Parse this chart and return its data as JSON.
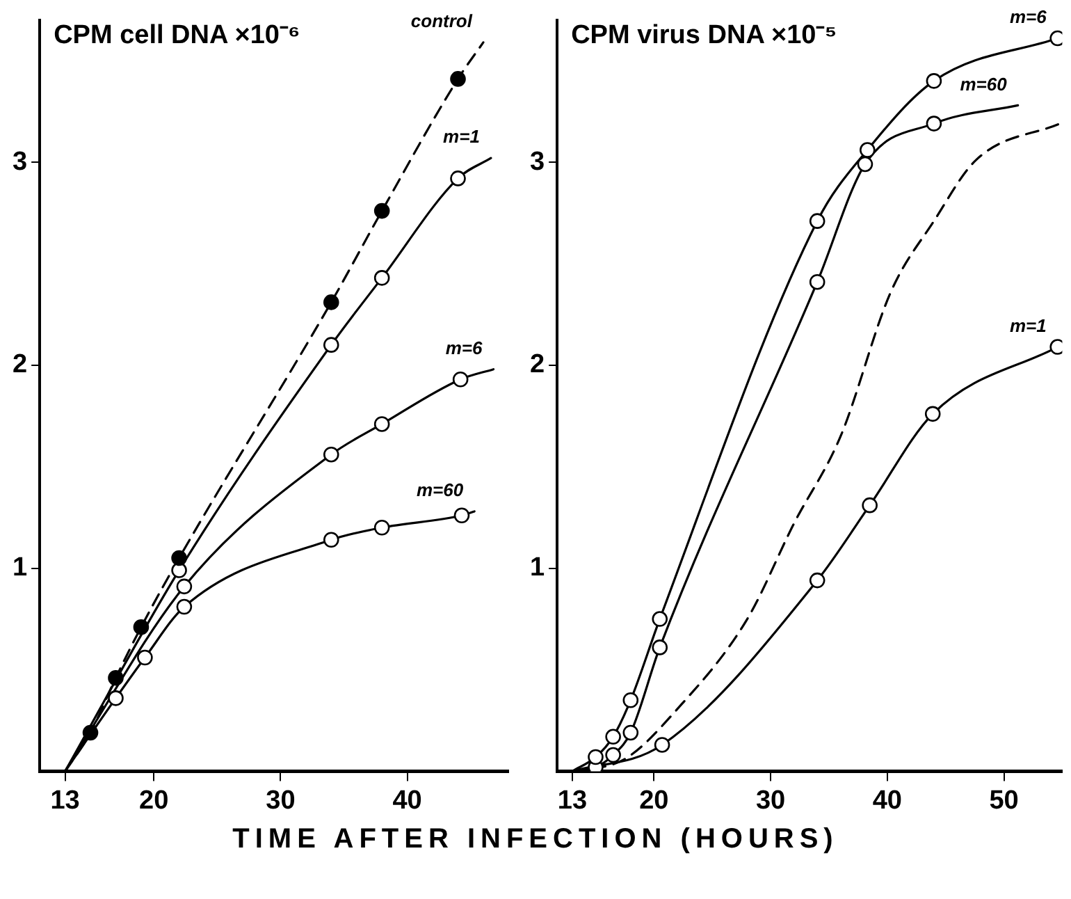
{
  "chart_data": [
    {
      "type": "line",
      "ylabel": "CPM cell DNA ×10⁻⁶",
      "xlabel": "TIME AFTER INFECTION (HOURS)",
      "xlim": [
        11,
        48
      ],
      "xticks": [
        13,
        20,
        30,
        40
      ],
      "ylim": [
        0,
        3.7
      ],
      "yticks": [
        1,
        2,
        3
      ],
      "legend": false,
      "series": [
        {
          "type": "line",
          "name": "control",
          "color": "#000000",
          "marker": "none",
          "line_style": "dashed",
          "x": [
            13,
            15,
            17,
            19,
            22,
            34,
            38,
            44,
            46
          ],
          "values": [
            0,
            0.19,
            0.46,
            0.71,
            1.05,
            2.31,
            2.76,
            3.41,
            3.59
          ]
        },
        {
          "type": "scatter",
          "color": "#000000",
          "marker": "circle",
          "x": [
            15,
            17,
            19,
            22,
            34,
            38,
            44
          ],
          "values": [
            0.19,
            0.46,
            0.71,
            1.05,
            2.31,
            2.76,
            3.41
          ]
        },
        {
          "type": "line",
          "name": "m=1",
          "color": "#000000",
          "marker": "none",
          "line_style": "solid",
          "x": [
            13,
            22,
            34,
            38,
            44,
            46.6
          ],
          "values": [
            0,
            0.99,
            2.1,
            2.43,
            2.92,
            3.02
          ]
        },
        {
          "type": "scatter",
          "color": "#ffffff",
          "marker": "circle",
          "x": [
            22,
            34,
            38,
            44
          ],
          "values": [
            0.99,
            2.1,
            2.43,
            2.92
          ]
        },
        {
          "type": "line",
          "name": "m=6",
          "color": "#000000",
          "marker": "none",
          "line_style": "solid",
          "x": [
            13,
            22.4,
            34,
            38,
            44.2,
            46.8
          ],
          "values": [
            0,
            0.91,
            1.56,
            1.71,
            1.93,
            1.98
          ]
        },
        {
          "type": "scatter",
          "color": "#ffffff",
          "marker": "circle",
          "x": [
            22.4,
            34,
            38,
            44.2
          ],
          "values": [
            0.91,
            1.56,
            1.71,
            1.93
          ]
        },
        {
          "type": "line",
          "name": "m=60",
          "color": "#000000",
          "marker": "none",
          "line_style": "solid",
          "x": [
            13,
            17,
            19.3,
            22.4,
            34,
            38,
            44.3,
            45.3
          ],
          "values": [
            0,
            0.36,
            0.56,
            0.81,
            1.14,
            1.2,
            1.26,
            1.28
          ]
        },
        {
          "type": "scatter",
          "color": "#ffffff",
          "marker": "circle",
          "x": [
            17,
            19.3,
            22.4,
            34,
            38,
            44.3
          ],
          "values": [
            0.36,
            0.56,
            0.81,
            1.14,
            1.2,
            1.26
          ]
        }
      ]
    },
    {
      "type": "line",
      "ylabel": "CPM virus DNA ×10⁻⁵",
      "xlim": [
        11.7,
        55
      ],
      "xticks": [
        13,
        20,
        30,
        40,
        50
      ],
      "ylim": [
        0,
        3.7
      ],
      "yticks": [
        1,
        2,
        3
      ],
      "legend": false,
      "series": [
        {
          "type": "line",
          "color": "#000000",
          "marker": "none",
          "line_style": "dashed",
          "x": [
            13,
            17.5,
            21.9,
            28,
            32,
            36,
            40.3,
            44,
            47.6,
            54.8
          ],
          "values": [
            0,
            0.06,
            0.3,
            0.75,
            1.22,
            1.65,
            2.36,
            2.71,
            3.01,
            3.19
          ]
        },
        {
          "type": "line",
          "name": "m=6",
          "color": "#000000",
          "marker": "none",
          "line_style": "solid",
          "x": [
            13,
            15,
            16.5,
            18,
            20.5,
            34,
            38.3,
            44,
            54.6
          ],
          "values": [
            0,
            0.07,
            0.17,
            0.35,
            0.75,
            2.71,
            3.06,
            3.4,
            3.61
          ]
        },
        {
          "type": "scatter",
          "color": "#ffffff",
          "marker": "circle",
          "x": [
            15,
            16.5,
            18,
            20.5,
            34,
            38.3,
            44,
            54.6
          ],
          "values": [
            0.07,
            0.17,
            0.35,
            0.75,
            2.71,
            3.06,
            3.4,
            3.61
          ]
        },
        {
          "type": "line",
          "name": "m=60",
          "color": "#000000",
          "marker": "none",
          "line_style": "solid",
          "x": [
            13,
            15,
            16.5,
            18,
            20.5,
            34,
            38.1,
            44,
            51.2
          ],
          "values": [
            0,
            0.02,
            0.08,
            0.19,
            0.61,
            2.41,
            2.99,
            3.19,
            3.28
          ]
        },
        {
          "type": "scatter",
          "color": "#ffffff",
          "marker": "circle",
          "x": [
            15,
            16.5,
            18,
            20.5,
            34,
            38.1,
            44
          ],
          "values": [
            0.02,
            0.08,
            0.19,
            0.61,
            2.41,
            2.99,
            3.19
          ]
        },
        {
          "type": "line",
          "name": "m=1",
          "color": "#000000",
          "marker": "none",
          "line_style": "solid",
          "x": [
            13,
            20.7,
            34,
            38.5,
            43.9,
            54.6
          ],
          "values": [
            0,
            0.13,
            0.94,
            1.31,
            1.76,
            2.09
          ]
        },
        {
          "type": "scatter",
          "color": "#ffffff",
          "marker": "circle",
          "x": [
            20.7,
            34,
            38.5,
            43.9,
            54.6
          ],
          "values": [
            0.13,
            0.94,
            1.31,
            1.76,
            2.09
          ]
        }
      ]
    }
  ]
}
